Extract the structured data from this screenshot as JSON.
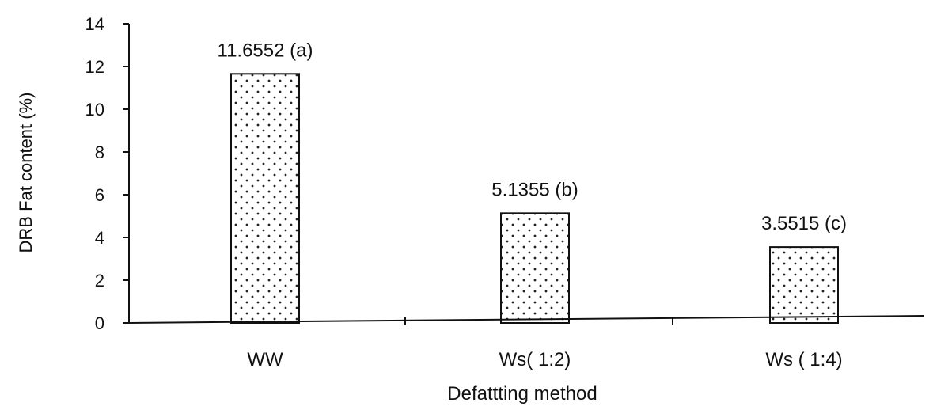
{
  "chart_data": {
    "type": "bar",
    "title": "",
    "xlabel": "Defattting method",
    "ylabel": "DRB Fat content (%)",
    "categories": [
      "WW",
      "Ws( 1:2)",
      "Ws ( 1:4)"
    ],
    "values": [
      11.6552,
      5.1355,
      3.5515
    ],
    "data_labels": [
      "11.6552 (a)",
      "5.1355 (b)",
      "3.5515 (c)"
    ],
    "ylim": [
      0,
      14
    ],
    "y_ticks": [
      "0",
      "2",
      "4",
      "6",
      "8",
      "10",
      "12",
      "14"
    ],
    "grid": false,
    "legend": "none",
    "bar_fill": "dotted pattern",
    "colors": {
      "bar_stroke": "#111111",
      "dot": "#222222",
      "axis": "#111111"
    }
  }
}
